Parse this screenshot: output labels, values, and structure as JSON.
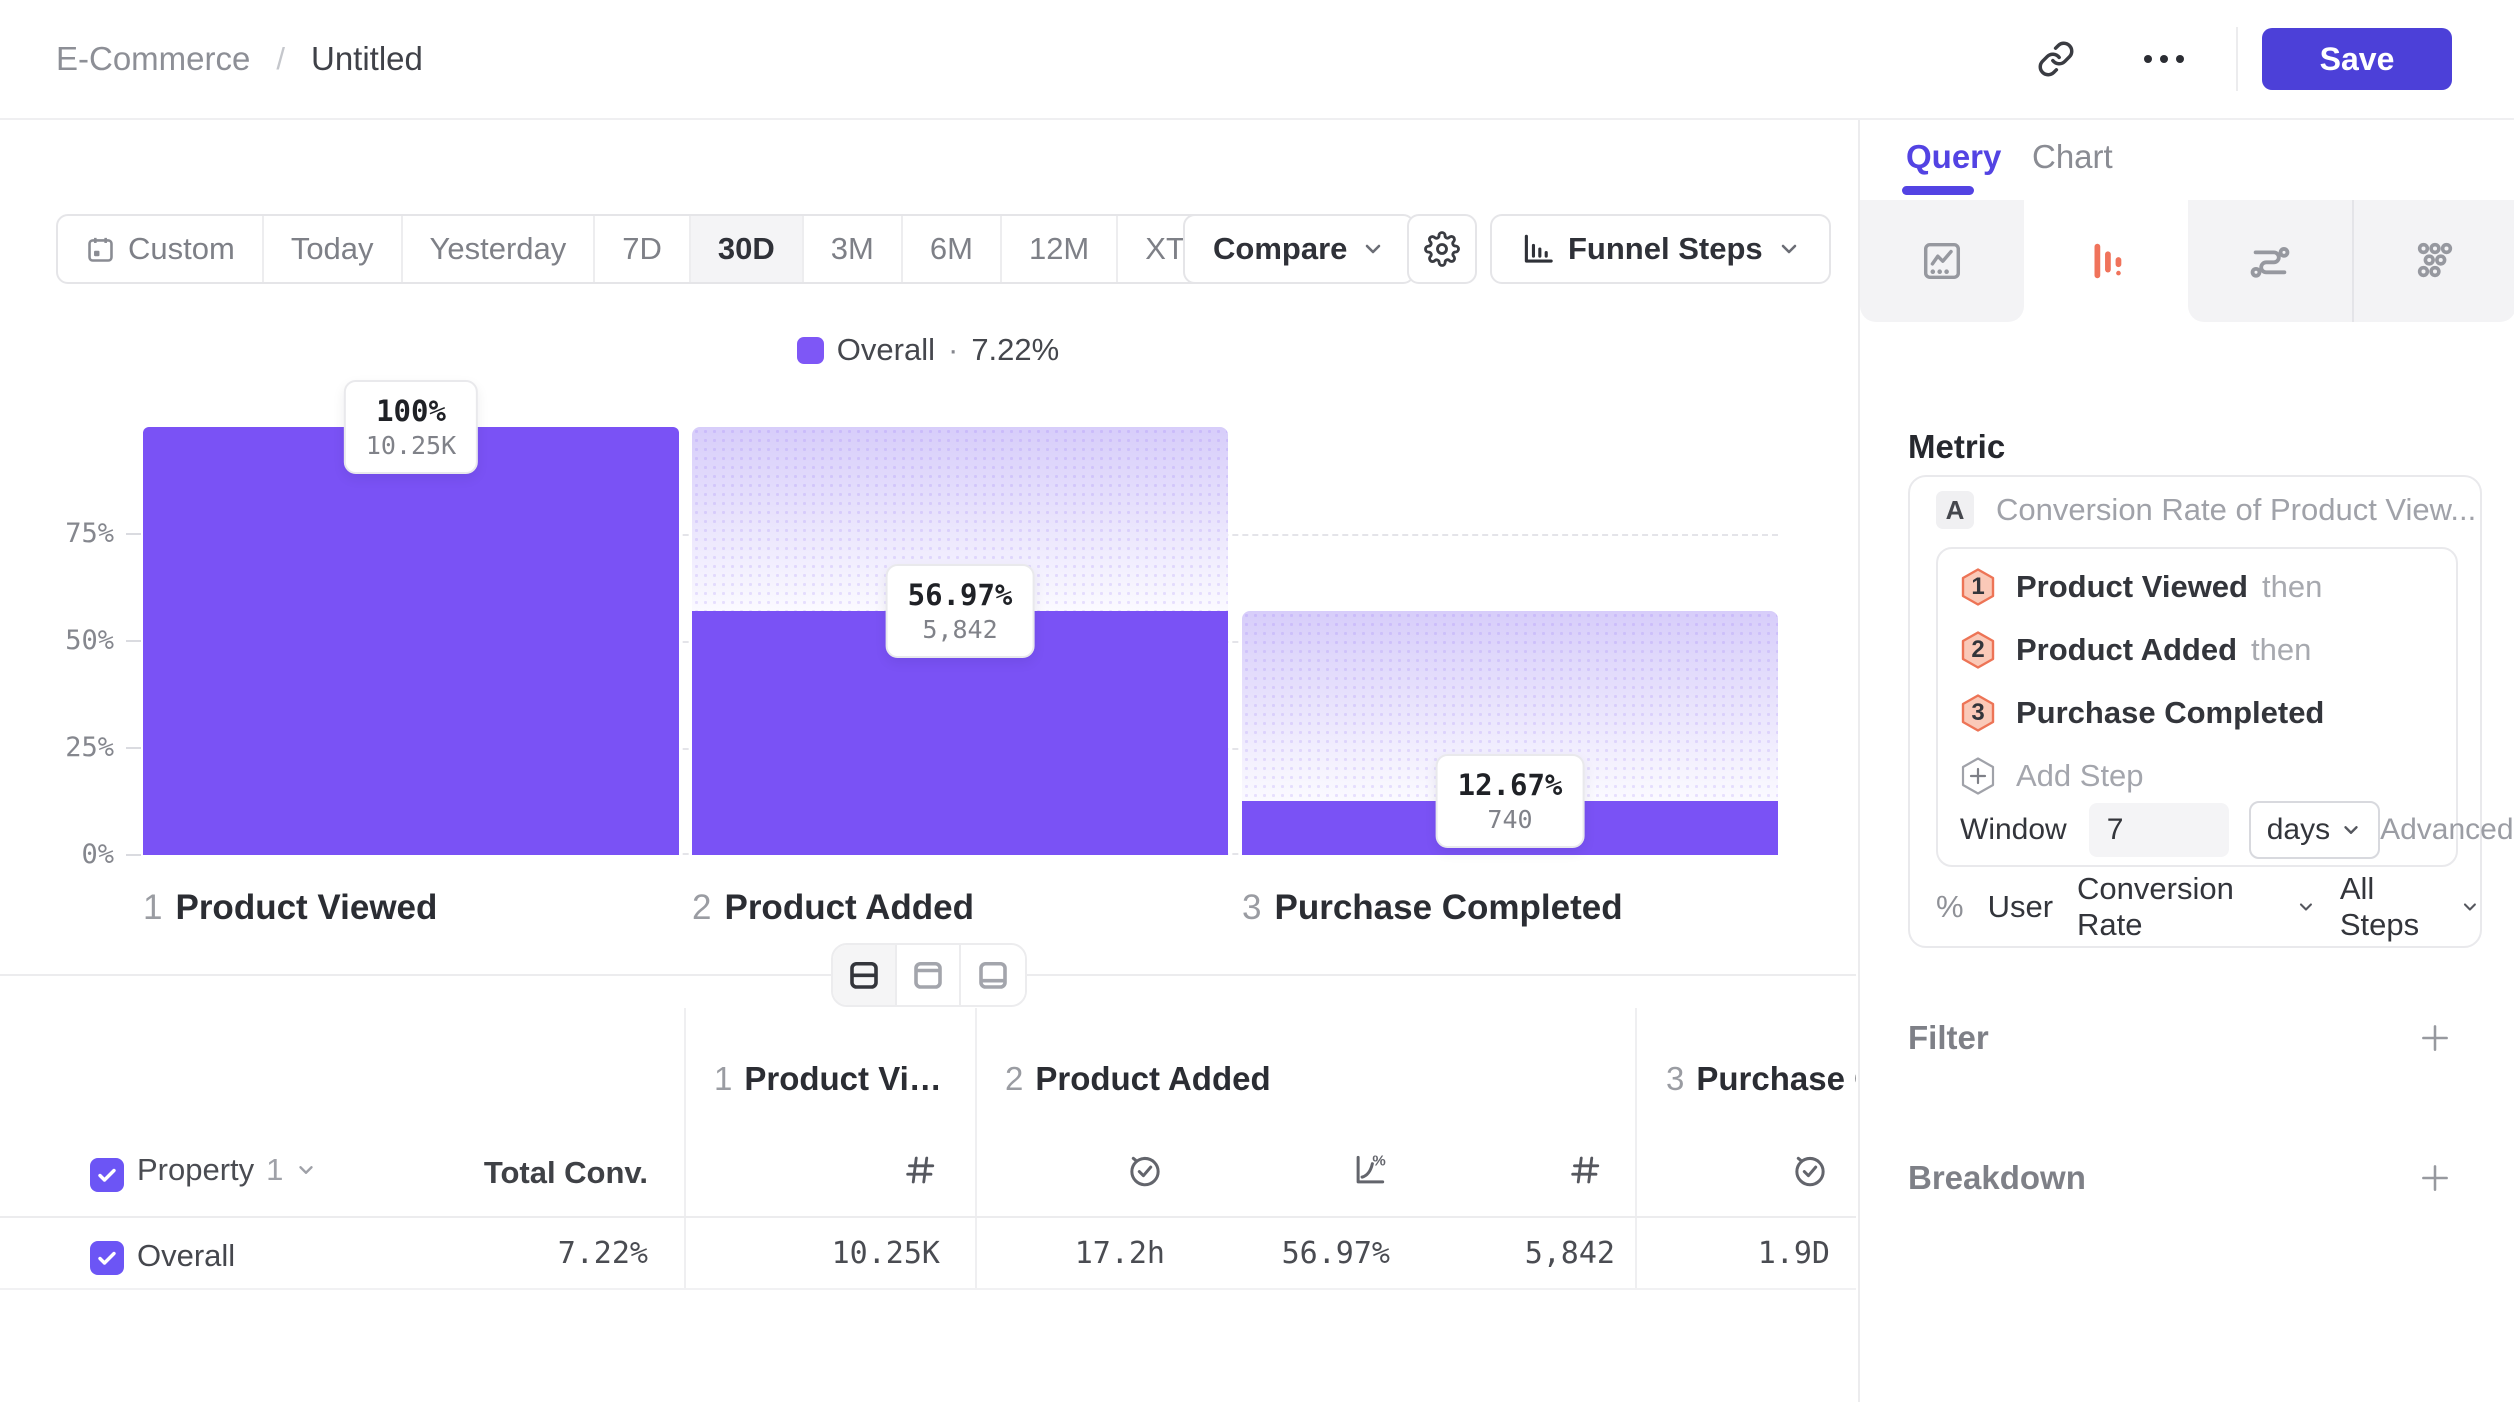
{
  "colors": {
    "accent_purple": "#7A52F5",
    "save_button": "#4C40D8",
    "query_tab": "#5343E3",
    "active_icon_tab": "#F0735B",
    "step_badge_fill": "#FAC9B8",
    "step_badge_border": "#ED7456",
    "ghost_bar_top": "#D7CDFA",
    "grid_dash": "#E4E4E9"
  },
  "topbar": {
    "breadcrumb_section": "E-Commerce",
    "breadcrumb_sep": "/",
    "breadcrumb_title": "Untitled",
    "save_label": "Save"
  },
  "toolbar": {
    "ranges": [
      {
        "label": "Custom"
      },
      {
        "label": "Today"
      },
      {
        "label": "Yesterday"
      },
      {
        "label": "7D"
      },
      {
        "label": "30D"
      },
      {
        "label": "3M"
      },
      {
        "label": "6M"
      },
      {
        "label": "12M"
      },
      {
        "label": "XTD"
      }
    ],
    "selected_range": "30D",
    "compare_label": "Compare",
    "view_label": "Funnel Steps"
  },
  "legend": {
    "series": "Overall",
    "sep": "·",
    "value": "7.22%"
  },
  "chart_data": {
    "type": "bar",
    "subtype": "funnel-steps",
    "title": "Overall · 7.22%",
    "ylim": [
      0,
      100
    ],
    "y_ticks": [
      "75%",
      "50%",
      "25%",
      "0%"
    ],
    "grid": "dashed-horizontal",
    "steps": [
      {
        "index": "1",
        "name": "Product Viewed",
        "pct": 100,
        "pct_label": "100%",
        "count": 10250,
        "count_label": "10.25K"
      },
      {
        "index": "2",
        "name": "Product Added",
        "pct": 56.97,
        "pct_label": "56.97%",
        "count": 5842,
        "count_label": "5,842"
      },
      {
        "index": "3",
        "name": "Purchase Completed",
        "pct": 12.67,
        "pct_label": "12.67%",
        "count": 740,
        "count_label": "740"
      }
    ]
  },
  "table": {
    "property_label": "Property",
    "property_index": "1",
    "total_conv_label": "Total Conv.",
    "columns": [
      {
        "index": "1",
        "name": "Product Viewed"
      },
      {
        "index": "2",
        "name": "Product Added"
      },
      {
        "index": "3",
        "name": "Purchase Completed"
      }
    ],
    "row": {
      "name": "Overall",
      "total_conv": "7.22%",
      "values": [
        "10.25K",
        "17.2h",
        "56.97%",
        "5,842",
        "1.9D"
      ]
    }
  },
  "panel": {
    "tabs": {
      "query": "Query",
      "chart": "Chart"
    },
    "metric_heading": "Metric",
    "metric": {
      "badge": "A",
      "title": "Conversion Rate of Product View...",
      "steps": [
        {
          "num": "1",
          "name": "Product Viewed",
          "suffix": "then"
        },
        {
          "num": "2",
          "name": "Product Added",
          "suffix": "then"
        },
        {
          "num": "3",
          "name": "Purchase Completed",
          "suffix": ""
        }
      ],
      "add_step_label": "Add Step",
      "window_label": "Window",
      "window_value": "7",
      "window_unit": "days",
      "advanced_label": "Advanced",
      "measure_prefix": "%",
      "measure_entity": "User",
      "measure_type": "Conversion Rate",
      "measure_scope": "All Steps"
    },
    "filter_label": "Filter",
    "breakdown_label": "Breakdown"
  }
}
